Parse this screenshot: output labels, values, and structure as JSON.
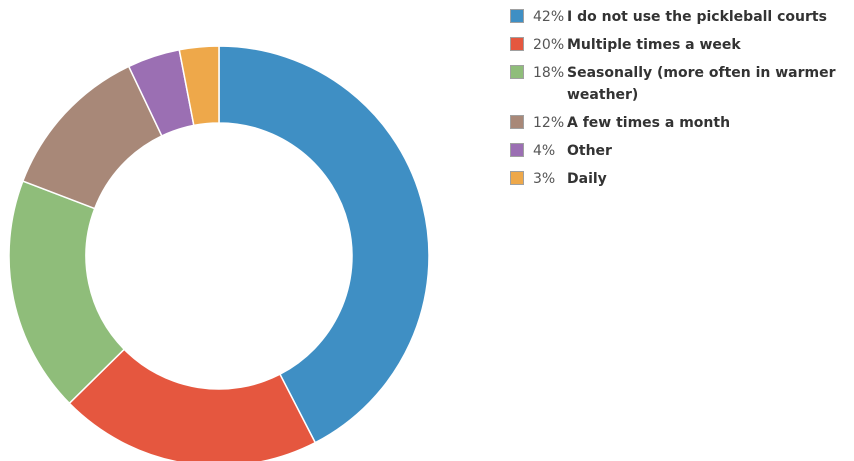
{
  "chart_data": {
    "type": "pie",
    "donut": true,
    "legend_position": "right",
    "slices": [
      {
        "percent": 42,
        "percent_label": "42%",
        "label": "I do not use the pickleball courts",
        "color": "#3f8fc4"
      },
      {
        "percent": 20,
        "percent_label": "20%",
        "label": "Multiple times a week",
        "color": "#e5573f"
      },
      {
        "percent": 18,
        "percent_label": "18%",
        "label": "Seasonally (more often in warmer weather)",
        "color": "#8fbd7a"
      },
      {
        "percent": 12,
        "percent_label": "12%",
        "label": "A few times a month",
        "color": "#a88878"
      },
      {
        "percent": 4,
        "percent_label": "4%",
        "label": "Other",
        "color": "#9b6fb3"
      },
      {
        "percent": 3,
        "percent_label": "3%",
        "label": "Daily",
        "color": "#eea84a"
      }
    ]
  }
}
